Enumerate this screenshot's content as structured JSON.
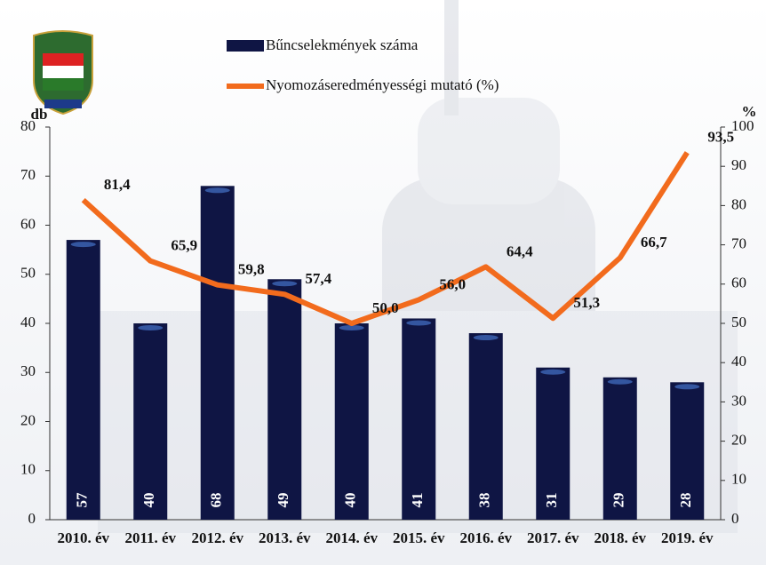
{
  "chart_data": {
    "type": "bar",
    "categories": [
      "2010. év",
      "2011. év",
      "2012. év",
      "2013. év",
      "2014. év",
      "2015. év",
      "2016. év",
      "2017. év",
      "2018. év",
      "2019. év"
    ],
    "y_label": "db",
    "y2_label": "%",
    "ylim": [
      0,
      80
    ],
    "yticks": [
      0,
      10,
      20,
      30,
      40,
      50,
      60,
      70,
      80
    ],
    "y2lim": [
      0,
      100
    ],
    "y2ticks": [
      0,
      10,
      20,
      30,
      40,
      50,
      60,
      70,
      80,
      90,
      100
    ],
    "series": [
      {
        "name": "Bűncselekmények száma",
        "type": "bar",
        "color": "#0f1544",
        "values": [
          57,
          40,
          68,
          49,
          40,
          41,
          38,
          31,
          29,
          28
        ]
      },
      {
        "name": "Nyomozáseredményességi mutató (%)",
        "type": "line",
        "axis": "y2",
        "color": "#f26b1d",
        "values": [
          81.4,
          65.9,
          59.8,
          57.4,
          50.0,
          56.0,
          64.4,
          51.3,
          66.7,
          93.5
        ],
        "value_labels": [
          "81,4",
          "65,9",
          "59,8",
          "57,4",
          "50,0",
          "56,0",
          "64,4",
          "51,3",
          "66,7",
          "93,5"
        ]
      }
    ]
  }
}
